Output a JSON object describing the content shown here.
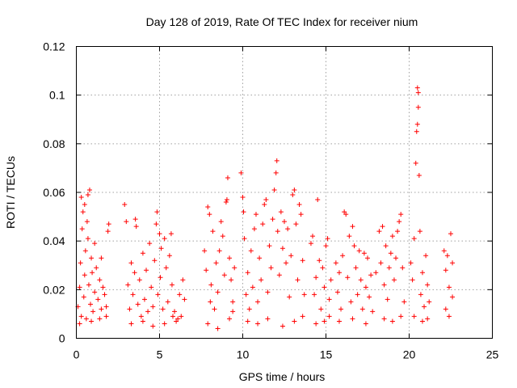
{
  "chart_data": {
    "type": "scatter",
    "title": "Day 128 of 2019, Rate Of TEC Index for receiver nium",
    "xlabel": "GPS time / hours",
    "ylabel": "ROTI / TECUs",
    "xlim": [
      0,
      25
    ],
    "ylim": [
      0,
      0.12
    ],
    "xticks": [
      0,
      5,
      10,
      15,
      20,
      25
    ],
    "xtick_labels": [
      "0",
      "5",
      "10",
      "15",
      "20",
      "25"
    ],
    "yticks": [
      0,
      0.02,
      0.04,
      0.06,
      0.08,
      0.1,
      0.12
    ],
    "ytick_labels": [
      "0",
      "0.02",
      "0.04",
      "0.06",
      "0.08",
      "0.1",
      "0.12"
    ],
    "grid": true,
    "marker": "+",
    "color": "#ff0000",
    "series": [
      {
        "name": "ROTI",
        "points": [
          [
            0.1,
            0.013
          ],
          [
            0.2,
            0.021
          ],
          [
            0.25,
            0.031
          ],
          [
            0.3,
            0.009
          ],
          [
            0.35,
            0.045
          ],
          [
            0.4,
            0.052
          ],
          [
            0.45,
            0.017
          ],
          [
            0.5,
            0.026
          ],
          [
            0.55,
            0.036
          ],
          [
            0.6,
            0.008
          ],
          [
            0.65,
            0.048
          ],
          [
            0.7,
            0.059
          ],
          [
            0.75,
            0.022
          ],
          [
            0.8,
            0.061
          ],
          [
            0.85,
            0.014
          ],
          [
            0.9,
            0.033
          ],
          [
            0.95,
            0.027
          ],
          [
            1.0,
            0.011
          ],
          [
            1.1,
            0.019
          ],
          [
            1.2,
            0.029
          ],
          [
            1.3,
            0.016
          ],
          [
            1.4,
            0.024
          ],
          [
            1.5,
            0.012
          ],
          [
            1.6,
            0.021
          ],
          [
            1.7,
            0.018
          ],
          [
            1.8,
            0.009
          ],
          [
            1.9,
            0.044
          ],
          [
            1.95,
            0.047
          ],
          [
            0.3,
            0.058
          ],
          [
            0.5,
            0.055
          ],
          [
            0.7,
            0.041
          ],
          [
            1.1,
            0.039
          ],
          [
            1.5,
            0.033
          ],
          [
            0.2,
            0.006
          ],
          [
            0.9,
            0.007
          ],
          [
            1.4,
            0.008
          ],
          [
            1.8,
            0.013
          ],
          [
            2.9,
            0.055
          ],
          [
            3.0,
            0.048
          ],
          [
            3.1,
            0.022
          ],
          [
            3.2,
            0.012
          ],
          [
            3.3,
            0.031
          ],
          [
            3.4,
            0.018
          ],
          [
            3.5,
            0.027
          ],
          [
            3.55,
            0.049
          ],
          [
            3.6,
            0.046
          ],
          [
            3.7,
            0.014
          ],
          [
            3.8,
            0.024
          ],
          [
            3.9,
            0.009
          ],
          [
            4.0,
            0.035
          ],
          [
            4.1,
            0.016
          ],
          [
            4.2,
            0.028
          ],
          [
            4.3,
            0.011
          ],
          [
            4.4,
            0.039
          ],
          [
            4.5,
            0.021
          ],
          [
            4.6,
            0.013
          ],
          [
            4.7,
            0.032
          ],
          [
            4.8,
            0.047
          ],
          [
            4.85,
            0.052
          ],
          [
            4.9,
            0.018
          ],
          [
            5.0,
            0.043
          ],
          [
            5.05,
            0.025
          ],
          [
            5.1,
            0.037
          ],
          [
            5.2,
            0.012
          ],
          [
            5.3,
            0.041
          ],
          [
            5.4,
            0.029
          ],
          [
            5.5,
            0.015
          ],
          [
            5.6,
            0.034
          ],
          [
            5.7,
            0.043
          ],
          [
            5.75,
            0.022
          ],
          [
            5.8,
            0.009
          ],
          [
            5.9,
            0.011
          ],
          [
            6.0,
            0.007
          ],
          [
            6.2,
            0.018
          ],
          [
            6.3,
            0.009
          ],
          [
            6.4,
            0.024
          ],
          [
            6.5,
            0.016
          ],
          [
            3.3,
            0.006
          ],
          [
            4.0,
            0.007
          ],
          [
            4.6,
            0.005
          ],
          [
            5.3,
            0.006
          ],
          [
            6.1,
            0.008
          ],
          [
            7.7,
            0.036
          ],
          [
            7.8,
            0.028
          ],
          [
            7.9,
            0.054
          ],
          [
            8.0,
            0.051
          ],
          [
            8.05,
            0.015
          ],
          [
            8.1,
            0.022
          ],
          [
            8.2,
            0.044
          ],
          [
            8.3,
            0.012
          ],
          [
            8.4,
            0.031
          ],
          [
            8.5,
            0.019
          ],
          [
            8.6,
            0.036
          ],
          [
            8.7,
            0.048
          ],
          [
            8.8,
            0.042
          ],
          [
            8.9,
            0.026
          ],
          [
            9.0,
            0.056
          ],
          [
            9.05,
            0.057
          ],
          [
            9.1,
            0.066
          ],
          [
            9.2,
            0.033
          ],
          [
            9.3,
            0.024
          ],
          [
            9.4,
            0.015
          ],
          [
            9.5,
            0.029
          ],
          [
            7.9,
            0.006
          ],
          [
            8.5,
            0.004
          ],
          [
            9.2,
            0.008
          ],
          [
            9.4,
            0.011
          ],
          [
            9.9,
            0.068
          ],
          [
            10.0,
            0.058
          ],
          [
            10.05,
            0.052
          ],
          [
            10.1,
            0.041
          ],
          [
            10.2,
            0.018
          ],
          [
            10.3,
            0.027
          ],
          [
            10.4,
            0.012
          ],
          [
            10.5,
            0.036
          ],
          [
            10.6,
            0.021
          ],
          [
            10.7,
            0.045
          ],
          [
            10.8,
            0.051
          ],
          [
            10.9,
            0.015
          ],
          [
            11.0,
            0.033
          ],
          [
            11.1,
            0.024
          ],
          [
            11.2,
            0.047
          ],
          [
            11.3,
            0.055
          ],
          [
            11.4,
            0.057
          ],
          [
            11.5,
            0.019
          ],
          [
            11.6,
            0.038
          ],
          [
            11.7,
            0.029
          ],
          [
            11.8,
            0.049
          ],
          [
            11.9,
            0.061
          ],
          [
            12.0,
            0.068
          ],
          [
            12.05,
            0.073
          ],
          [
            12.1,
            0.044
          ],
          [
            12.2,
            0.026
          ],
          [
            12.3,
            0.052
          ],
          [
            12.4,
            0.037
          ],
          [
            12.5,
            0.048
          ],
          [
            12.6,
            0.031
          ],
          [
            12.7,
            0.045
          ],
          [
            12.8,
            0.017
          ],
          [
            12.9,
            0.034
          ],
          [
            13.0,
            0.059
          ],
          [
            13.1,
            0.061
          ],
          [
            13.2,
            0.047
          ],
          [
            13.3,
            0.024
          ],
          [
            13.4,
            0.055
          ],
          [
            13.5,
            0.051
          ],
          [
            13.6,
            0.032
          ],
          [
            13.7,
            0.018
          ],
          [
            10.3,
            0.007
          ],
          [
            10.9,
            0.006
          ],
          [
            11.5,
            0.008
          ],
          [
            12.4,
            0.005
          ],
          [
            13.1,
            0.007
          ],
          [
            13.6,
            0.009
          ],
          [
            14.1,
            0.039
          ],
          [
            14.2,
            0.042
          ],
          [
            14.3,
            0.018
          ],
          [
            14.4,
            0.025
          ],
          [
            14.5,
            0.057
          ],
          [
            14.6,
            0.032
          ],
          [
            14.7,
            0.012
          ],
          [
            14.8,
            0.029
          ],
          [
            14.9,
            0.021
          ],
          [
            15.0,
            0.038
          ],
          [
            15.1,
            0.041
          ],
          [
            15.2,
            0.016
          ],
          [
            15.3,
            0.024
          ],
          [
            14.4,
            0.006
          ],
          [
            14.9,
            0.007
          ],
          [
            15.2,
            0.009
          ],
          [
            15.6,
            0.031
          ],
          [
            15.7,
            0.019
          ],
          [
            15.8,
            0.027
          ],
          [
            15.9,
            0.012
          ],
          [
            16.0,
            0.034
          ],
          [
            16.1,
            0.052
          ],
          [
            16.2,
            0.051
          ],
          [
            16.3,
            0.025
          ],
          [
            16.4,
            0.042
          ],
          [
            16.5,
            0.015
          ],
          [
            16.6,
            0.046
          ],
          [
            16.7,
            0.038
          ],
          [
            16.8,
            0.029
          ],
          [
            16.9,
            0.018
          ],
          [
            17.0,
            0.036
          ],
          [
            17.1,
            0.024
          ],
          [
            17.2,
            0.012
          ],
          [
            17.3,
            0.035
          ],
          [
            17.4,
            0.021
          ],
          [
            17.5,
            0.033
          ],
          [
            17.6,
            0.017
          ],
          [
            17.7,
            0.026
          ],
          [
            17.8,
            0.011
          ],
          [
            15.8,
            0.007
          ],
          [
            16.6,
            0.008
          ],
          [
            17.4,
            0.006
          ],
          [
            18.0,
            0.027
          ],
          [
            18.2,
            0.044
          ],
          [
            18.3,
            0.031
          ],
          [
            18.4,
            0.046
          ],
          [
            18.5,
            0.022
          ],
          [
            18.6,
            0.038
          ],
          [
            18.7,
            0.016
          ],
          [
            18.8,
            0.029
          ],
          [
            18.9,
            0.035
          ],
          [
            19.0,
            0.042
          ],
          [
            19.1,
            0.024
          ],
          [
            19.2,
            0.033
          ],
          [
            19.3,
            0.044
          ],
          [
            19.4,
            0.048
          ],
          [
            19.5,
            0.051
          ],
          [
            19.6,
            0.029
          ],
          [
            19.7,
            0.015
          ],
          [
            18.5,
            0.008
          ],
          [
            19.0,
            0.007
          ],
          [
            19.5,
            0.009
          ],
          [
            20.1,
            0.031
          ],
          [
            20.2,
            0.024
          ],
          [
            20.3,
            0.041
          ],
          [
            20.4,
            0.072
          ],
          [
            20.45,
            0.085
          ],
          [
            20.5,
            0.103
          ],
          [
            20.55,
            0.095
          ],
          [
            20.6,
            0.067
          ],
          [
            20.65,
            0.044
          ],
          [
            20.7,
            0.018
          ],
          [
            20.8,
            0.027
          ],
          [
            20.9,
            0.013
          ],
          [
            21.0,
            0.034
          ],
          [
            21.1,
            0.022
          ],
          [
            21.2,
            0.015
          ],
          [
            20.3,
            0.009
          ],
          [
            20.8,
            0.007
          ],
          [
            21.1,
            0.008
          ],
          [
            20.5,
            0.088
          ],
          [
            20.55,
            0.101
          ],
          [
            22.1,
            0.036
          ],
          [
            22.2,
            0.028
          ],
          [
            22.3,
            0.034
          ],
          [
            22.4,
            0.021
          ],
          [
            22.5,
            0.043
          ],
          [
            22.6,
            0.031
          ],
          [
            22.2,
            0.012
          ],
          [
            22.4,
            0.009
          ],
          [
            22.6,
            0.017
          ]
        ]
      }
    ]
  }
}
